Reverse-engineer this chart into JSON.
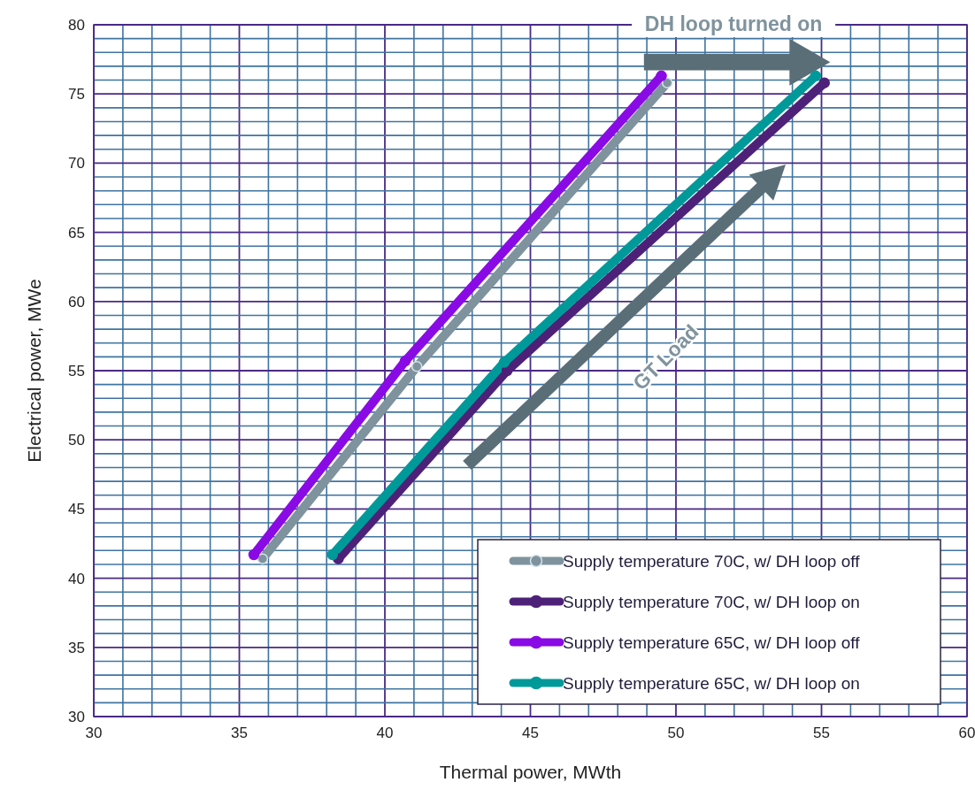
{
  "chart_data": {
    "type": "line",
    "xlabel": "Thermal power, MWth",
    "ylabel": "Electrical power, MWe",
    "xlim": [
      30,
      60
    ],
    "xticks": [
      30,
      {
        "value": 31,
        "label": null
      },
      {
        "value": 32,
        "label": null
      },
      {
        "value": 33,
        "label": null
      },
      {
        "value": 34,
        "label": null
      },
      35,
      {
        "value": 36,
        "label": null
      },
      {
        "value": 37,
        "label": null
      },
      {
        "value": 38,
        "label": null
      },
      {
        "value": 39,
        "label": null
      },
      40,
      {
        "value": 41,
        "label": null
      },
      {
        "value": 42,
        "label": null
      },
      {
        "value": 43,
        "label": null
      },
      {
        "value": 44,
        "label": null
      },
      45,
      {
        "value": 46,
        "label": null
      },
      {
        "value": 47,
        "label": null
      },
      {
        "value": 48,
        "label": null
      },
      {
        "value": 49,
        "label": null
      },
      50,
      {
        "value": 51,
        "label": null
      },
      {
        "value": 52,
        "label": null
      },
      {
        "value": 53,
        "label": null
      },
      {
        "value": 54,
        "label": null
      },
      55,
      {
        "value": 56,
        "label": null
      },
      {
        "value": 57,
        "label": null
      },
      {
        "value": 58,
        "label": null
      },
      {
        "value": 59,
        "label": null
      },
      60
    ],
    "ylim": [
      30,
      80
    ],
    "yticks": [
      30,
      {
        "value": 31,
        "label": null
      },
      {
        "value": 32,
        "label": null
      },
      {
        "value": 33,
        "label": null
      },
      {
        "value": 34,
        "label": null
      },
      35,
      {
        "value": 36,
        "label": null
      },
      {
        "value": 37,
        "label": null
      },
      {
        "value": 38,
        "label": null
      },
      {
        "value": 39,
        "label": null
      },
      40,
      {
        "value": 41,
        "label": null
      },
      {
        "value": 42,
        "label": null
      },
      {
        "value": 43,
        "label": null
      },
      {
        "value": 44,
        "label": null
      },
      45,
      {
        "value": 46,
        "label": null
      },
      {
        "value": 47,
        "label": null
      },
      {
        "value": 48,
        "label": null
      },
      {
        "value": 49,
        "label": null
      },
      50,
      {
        "value": 51,
        "label": null
      },
      {
        "value": 52,
        "label": null
      },
      {
        "value": 53,
        "label": null
      },
      {
        "value": 54,
        "label": null
      },
      55,
      {
        "value": 56,
        "label": null
      },
      {
        "value": 57,
        "label": null
      },
      {
        "value": 58,
        "label": null
      },
      {
        "value": 59,
        "label": null
      },
      60,
      {
        "value": 61,
        "label": null
      },
      {
        "value": 62,
        "label": null
      },
      {
        "value": 63,
        "label": null
      },
      {
        "value": 64,
        "label": null
      },
      65,
      {
        "value": 66,
        "label": null
      },
      {
        "value": 67,
        "label": null
      },
      {
        "value": 68,
        "label": null
      },
      {
        "value": 69,
        "label": null
      },
      70,
      {
        "value": 71,
        "label": null
      },
      {
        "value": 72,
        "label": null
      },
      {
        "value": 73,
        "label": null
      },
      {
        "value": 74,
        "label": null
      },
      75,
      {
        "value": 76,
        "label": null
      },
      {
        "value": 77,
        "label": null
      },
      {
        "value": 78,
        "label": null
      },
      {
        "value": 79,
        "label": null
      },
      80
    ],
    "grid": true,
    "legend": "bottom right",
    "marker": "circle",
    "line_style": "solid",
    "annotations": [
      "DH loop turned on",
      "GT Load"
    ],
    "series": [
      {
        "name": "Supply temperature 70C, w/ DH loop off",
        "color": "#7f939e",
        "x": [
          35.8,
          41.1,
          49.7
        ],
        "values": [
          41.4,
          55.3,
          75.8
        ]
      },
      {
        "name": "Supply temperature 70C, w/ DH loop on",
        "color": "#4e2179",
        "x": [
          38.4,
          44.2,
          55.1
        ],
        "values": [
          41.4,
          55.0,
          75.8
        ]
      },
      {
        "name": "Supply temperature 65C, w/ DH loop off",
        "color": "#8a0ae6",
        "x": [
          35.5,
          40.7,
          49.5
        ],
        "values": [
          41.7,
          55.7,
          76.3
        ]
      },
      {
        "name": "Supply temperature 65C, w/ DH loop on",
        "color": "#009999",
        "x": [
          38.2,
          44.1,
          54.8
        ],
        "values": [
          41.7,
          55.6,
          76.3
        ]
      }
    ]
  }
}
